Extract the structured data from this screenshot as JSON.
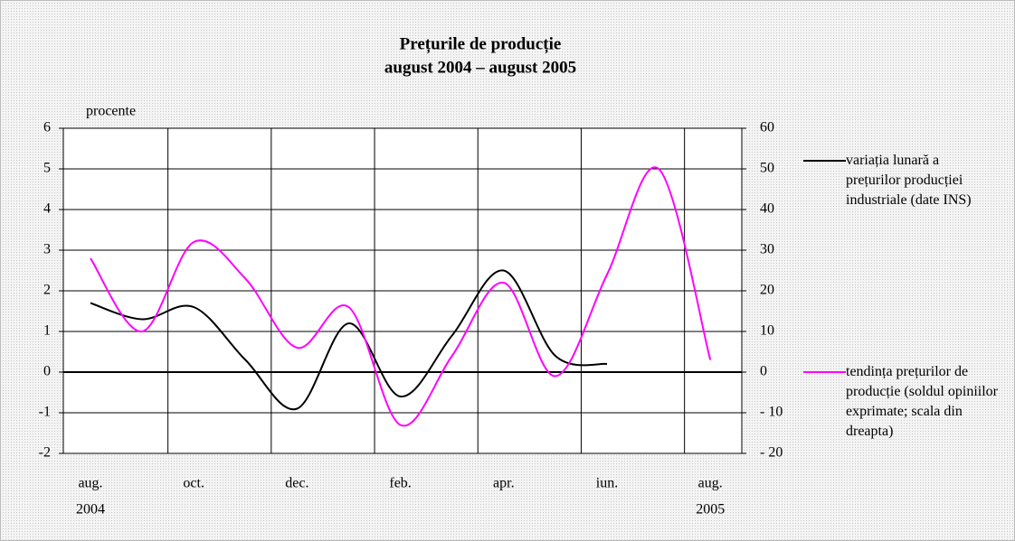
{
  "chart_data": {
    "type": "line",
    "title": "Prețurile de producție",
    "subtitle": "august 2004 – august 2005",
    "y_label": "procente",
    "categories": [
      "aug.",
      null,
      "oct.",
      null,
      "dec.",
      null,
      "feb.",
      null,
      "apr.",
      null,
      "iun.",
      null,
      "aug."
    ],
    "year_labels": [
      "2004",
      "2005"
    ],
    "series": [
      {
        "name": "variația lunară a prețurilor producției industriale (date INS)",
        "color": "#000000",
        "values": [
          1.7,
          1.3,
          1.6,
          0.3,
          -0.9,
          1.2,
          -0.6,
          0.9,
          2.5,
          0.4,
          0.2,
          null,
          null
        ]
      },
      {
        "name": "tendința prețurilor de producție (soldul opiniilor exprimate; scala din dreapta)",
        "color": "#ff00ff",
        "axis": "y2",
        "values": [
          28,
          10,
          32,
          23,
          6,
          16,
          -13,
          4,
          22,
          -1,
          24,
          50,
          3
        ]
      }
    ],
    "ylim": [
      -2,
      6
    ],
    "yticks": [
      -2,
      -1,
      0,
      1,
      2,
      3,
      4,
      5,
      6
    ],
    "y2lim": [
      -20,
      60
    ],
    "y2ticks": [
      {
        "value": -20,
        "label": "- 20"
      },
      {
        "value": -10,
        "label": "- 10"
      },
      0,
      10,
      20,
      30,
      40,
      50,
      60
    ],
    "grid": true
  }
}
